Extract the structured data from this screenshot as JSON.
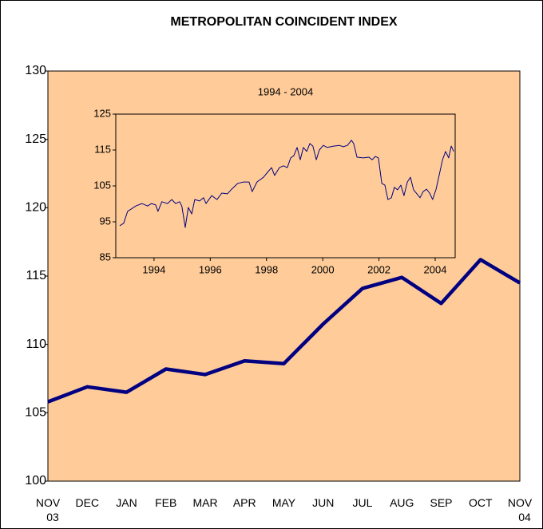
{
  "chart_data": [
    {
      "type": "line",
      "title": "METROPOLITAN COINCIDENT INDEX",
      "categories": [
        "NOV 03",
        "DEC",
        "JAN",
        "FEB",
        "MAR",
        "APR",
        "MAY",
        "JUN",
        "JUL",
        "AUG",
        "SEP",
        "OCT",
        "NOV 04"
      ],
      "values": [
        105.8,
        106.9,
        106.5,
        108.2,
        107.8,
        108.8,
        108.6,
        111.5,
        114.1,
        114.9,
        113.0,
        116.2,
        114.5
      ],
      "color": "#000080",
      "ylim": [
        100,
        130
      ],
      "yticks": [
        100,
        105,
        110,
        115,
        120,
        125,
        130
      ]
    },
    {
      "type": "line",
      "title": "1994 - 2004",
      "x": [
        1992.78,
        1992.92,
        1993.06,
        1993.35,
        1993.57,
        1993.77,
        1993.91,
        1994.06,
        1994.14,
        1994.28,
        1994.48,
        1994.63,
        1994.77,
        1994.91,
        1994.99,
        1995.11,
        1995.22,
        1995.34,
        1995.45,
        1995.62,
        1995.76,
        1995.85,
        1996.05,
        1996.24,
        1996.41,
        1996.61,
        1996.76,
        1996.98,
        1997.18,
        1997.38,
        1997.49,
        1997.66,
        1997.89,
        1998.06,
        1998.18,
        1998.29,
        1998.46,
        1998.6,
        1998.74,
        1998.86,
        1998.97,
        1999.09,
        1999.2,
        1999.31,
        1999.43,
        1999.54,
        1999.65,
        1999.77,
        1999.88,
        2000.02,
        2000.16,
        2000.39,
        2000.59,
        2000.73,
        2000.88,
        2001.02,
        2001.1,
        2001.22,
        2001.44,
        2001.64,
        2001.76,
        2001.87,
        2001.98,
        2002.1,
        2002.21,
        2002.32,
        2002.44,
        2002.55,
        2002.66,
        2002.78,
        2002.89,
        2003.01,
        2003.12,
        2003.23,
        2003.35,
        2003.46,
        2003.57,
        2003.69,
        2003.8,
        2003.91,
        2004.03,
        2004.14,
        2004.26,
        2004.37,
        2004.48,
        2004.57,
        2004.66
      ],
      "values": [
        93.9,
        94.6,
        97.9,
        99.4,
        100.1,
        99.4,
        100.1,
        99.7,
        97.9,
        100.6,
        100.1,
        101.2,
        100.1,
        100.6,
        99.4,
        93.4,
        99.0,
        97.2,
        101.2,
        100.8,
        101.7,
        100.1,
        102.3,
        101.2,
        103.0,
        102.8,
        104.1,
        105.7,
        106.1,
        106.1,
        103.4,
        106.1,
        107.4,
        109.0,
        110.1,
        107.9,
        110.1,
        110.6,
        110.1,
        112.8,
        113.4,
        115.7,
        112.3,
        115.7,
        114.6,
        116.8,
        116.1,
        112.3,
        115.0,
        116.3,
        115.7,
        116.1,
        116.3,
        115.9,
        116.3,
        117.7,
        116.8,
        113.0,
        112.8,
        113.0,
        112.3,
        113.2,
        112.8,
        105.7,
        105.2,
        101.2,
        101.7,
        104.6,
        103.9,
        105.2,
        102.3,
        106.1,
        107.4,
        103.9,
        102.8,
        101.7,
        103.4,
        104.1,
        103.0,
        101.2,
        104.1,
        107.9,
        112.3,
        114.6,
        112.8,
        116.1,
        114.6
      ],
      "color": "#000080",
      "xlim": [
        1992.64,
        2004.71
      ],
      "xticks": [
        1994,
        1996,
        1998,
        2000,
        2002,
        2004
      ],
      "ylim": [
        85,
        125
      ],
      "yticks": [
        85,
        95,
        105,
        115,
        125
      ]
    }
  ]
}
